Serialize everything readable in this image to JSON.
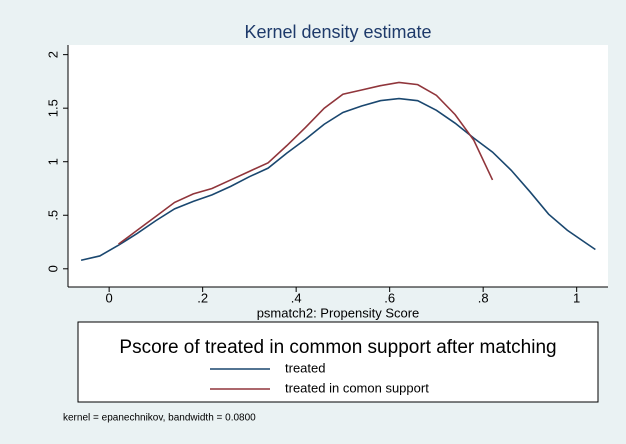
{
  "chart_data": {
    "type": "line",
    "title": "Kernel density estimate",
    "x_label": "psmatch2: Propensity Score",
    "legend_title": "Pscore of treated in common support after matching",
    "note": "kernel = epanechnikov, bandwidth = 0.0800",
    "xlim": [
      -0.088,
      1.067
    ],
    "ylim": [
      -0.17,
      2.09
    ],
    "xticks": [
      0,
      {
        "value": 0.2,
        "label": ".2"
      },
      {
        "value": 0.4,
        "label": ".4"
      },
      {
        "value": 0.6,
        "label": ".6"
      },
      {
        "value": 0.8,
        "label": ".8"
      },
      1
    ],
    "yticks": [
      0,
      {
        "value": 0.5,
        "label": ".5"
      },
      1,
      1.5,
      2
    ],
    "grid": false,
    "series": [
      {
        "name": "treated",
        "color": "#1a476f",
        "x": [
          -0.06,
          -0.02,
          0.02,
          0.06,
          0.1,
          0.14,
          0.18,
          0.22,
          0.26,
          0.3,
          0.34,
          0.38,
          0.42,
          0.46,
          0.5,
          0.54,
          0.58,
          0.62,
          0.66,
          0.7,
          0.74,
          0.78,
          0.82,
          0.86,
          0.9,
          0.94,
          0.98,
          1.02,
          1.04
        ],
        "values": [
          0.08,
          0.12,
          0.22,
          0.33,
          0.45,
          0.56,
          0.63,
          0.69,
          0.77,
          0.86,
          0.94,
          1.08,
          1.21,
          1.35,
          1.46,
          1.52,
          1.57,
          1.59,
          1.57,
          1.48,
          1.36,
          1.22,
          1.09,
          0.92,
          0.72,
          0.51,
          0.36,
          0.24,
          0.18
        ]
      },
      {
        "name": "treated in comon support",
        "color": "#90353b",
        "x": [
          0.02,
          0.06,
          0.1,
          0.14,
          0.18,
          0.22,
          0.26,
          0.3,
          0.34,
          0.38,
          0.42,
          0.46,
          0.5,
          0.54,
          0.58,
          0.62,
          0.66,
          0.7,
          0.74,
          0.78,
          0.82
        ],
        "values": [
          0.23,
          0.36,
          0.49,
          0.62,
          0.7,
          0.75,
          0.83,
          0.91,
          0.99,
          1.15,
          1.32,
          1.5,
          1.63,
          1.67,
          1.71,
          1.74,
          1.72,
          1.62,
          1.44,
          1.2,
          0.83
        ]
      }
    ]
  }
}
